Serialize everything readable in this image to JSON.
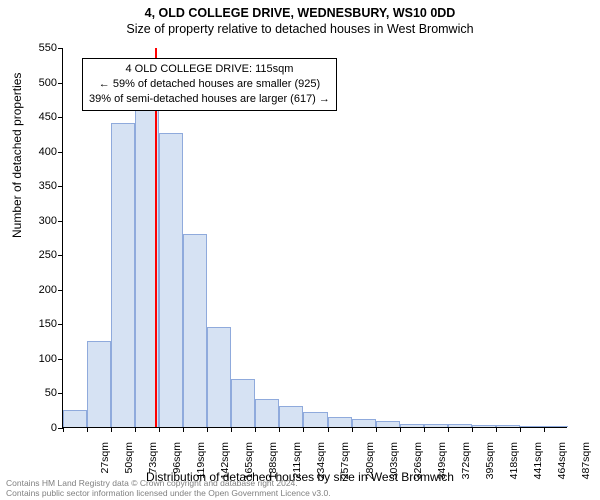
{
  "title": "4, OLD COLLEGE DRIVE, WEDNESBURY, WS10 0DD",
  "subtitle": "Size of property relative to detached houses in West Bromwich",
  "y_axis_label": "Number of detached properties",
  "x_axis_label": "Distribution of detached houses by size in West Bromwich",
  "chart": {
    "type": "histogram",
    "ylim": [
      0,
      550
    ],
    "ytick_step": 50,
    "bar_fill": "#d6e2f3",
    "bar_border": "#8faadc",
    "marker_color": "#ff0000",
    "marker_x_sqm": 115,
    "background_color": "#ffffff",
    "x_start_sqm": 27,
    "x_step_sqm": 23,
    "x_count": 21,
    "x_unit": "sqm",
    "values": [
      25,
      125,
      440,
      530,
      425,
      280,
      145,
      70,
      40,
      30,
      22,
      15,
      12,
      8,
      5,
      5,
      4,
      3,
      3,
      2,
      2
    ]
  },
  "callout": {
    "line1": "4 OLD COLLEGE DRIVE: 115sqm",
    "line2": "← 59% of detached houses are smaller (925)",
    "line3": "39% of semi-detached houses are larger (617) →"
  },
  "footer": {
    "line1": "Contains HM Land Registry data © Crown copyright and database right 2024.",
    "line2": "Contains public sector information licensed under the Open Government Licence v3.0."
  }
}
